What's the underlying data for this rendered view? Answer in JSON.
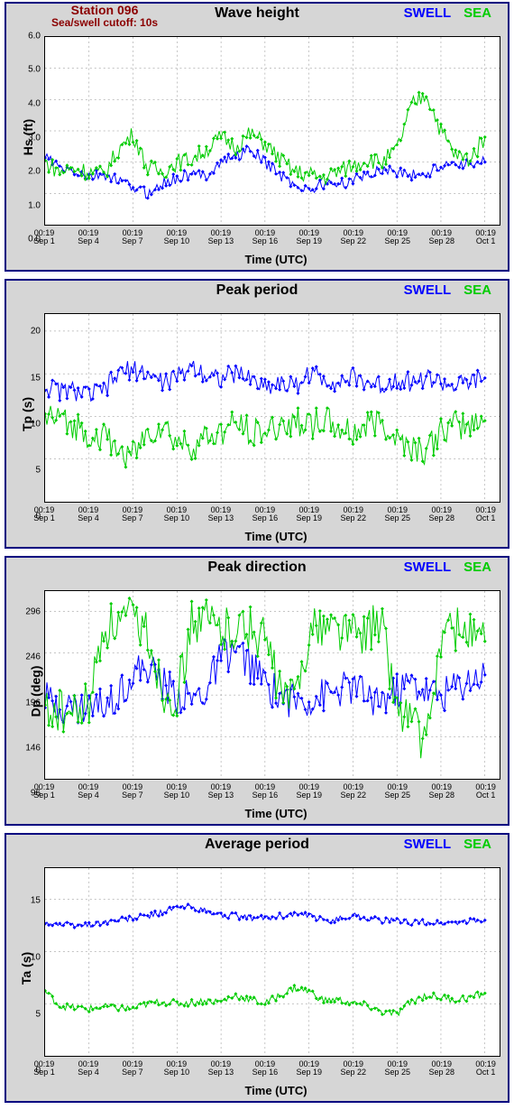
{
  "global": {
    "station_name": "Station 096",
    "cutoff_text": "Sea/swell cutoff: 10s",
    "xlabel": "Time (UTC)",
    "legend_swell": "SWELL",
    "legend_sea": "SEA",
    "xtick_labels": [
      "00:19\nSep 1",
      "00:19\nSep 4",
      "00:19\nSep 7",
      "00:19\nSep 10",
      "00:19\nSep 13",
      "00:19\nSep 16",
      "00:19\nSep 19",
      "00:19\nSep 22",
      "00:19\nSep 25",
      "00:19\nSep 28",
      "00:19\nOct 1"
    ],
    "xtick_positions": [
      0,
      3,
      6,
      9,
      12,
      15,
      18,
      21,
      24,
      27,
      30
    ],
    "x_domain": [
      0,
      31
    ],
    "colors": {
      "panel_bg": "#d6d6d6",
      "panel_border": "#000080",
      "station_text": "#8b0000",
      "plot_bg": "#ffffff",
      "grid": "#888888",
      "swell": "#0000ff",
      "sea": "#00cc00",
      "text": "#000000"
    },
    "marker_size": 2,
    "line_width": 1,
    "font_family": "Arial",
    "title_fontsize": 16,
    "label_fontsize": 14,
    "tick_fontsize": 10
  },
  "charts": [
    {
      "id": "wave-height",
      "title": "Wave height",
      "ylabel": "Hs (ft)",
      "show_station": true,
      "ylim": [
        0.0,
        6.0
      ],
      "ytick_positions": [
        0.0,
        1.0,
        2.0,
        3.0,
        4.0,
        5.0,
        6.0
      ],
      "ytick_labels": [
        "0.0",
        "1.0",
        "2.0",
        "3.0",
        "4.0",
        "5.0",
        "6.0"
      ],
      "series": {
        "swell": [
          2.2,
          1.8,
          1.7,
          1.5,
          1.6,
          1.4,
          1.2,
          1.0,
          1.3,
          1.5,
          1.6,
          1.6,
          2.0,
          2.2,
          2.4,
          2.0,
          1.6,
          1.3,
          1.1,
          1.3,
          1.3,
          1.4,
          1.6,
          1.8,
          1.7,
          1.6,
          1.6,
          1.9,
          2.0,
          1.9,
          2.0
        ],
        "sea": [
          2.0,
          1.7,
          1.8,
          1.7,
          1.6,
          2.4,
          2.9,
          1.8,
          1.7,
          2.0,
          2.1,
          2.4,
          2.8,
          2.5,
          2.9,
          2.6,
          2.1,
          1.7,
          1.6,
          1.5,
          1.7,
          1.9,
          2.1,
          2.0,
          2.4,
          3.8,
          4.2,
          3.0,
          2.2,
          2.1,
          2.8
        ]
      },
      "noise": {
        "swell": 0.18,
        "sea": 0.28
      }
    },
    {
      "id": "peak-period",
      "title": "Peak period",
      "ylabel": "Tp (s)",
      "show_station": false,
      "ylim": [
        0,
        22
      ],
      "ytick_positions": [
        0,
        5,
        10,
        15,
        20
      ],
      "ytick_labels": [
        "0",
        "5",
        "10",
        "15",
        "20"
      ],
      "series": {
        "swell": [
          13.5,
          13.0,
          13.0,
          12.5,
          13.0,
          15.0,
          15.5,
          15.0,
          14.0,
          14.5,
          16.0,
          15.0,
          14.5,
          15.0,
          14.5,
          13.5,
          14.0,
          13.5,
          15.0,
          14.5,
          14.0,
          14.5,
          14.0,
          13.5,
          14.5,
          14.0,
          14.5,
          14.0,
          13.5,
          14.0,
          14.5
        ],
        "sea": [
          10.0,
          9.5,
          9.0,
          8.0,
          7.5,
          6.0,
          5.5,
          8.0,
          9.0,
          7.0,
          6.5,
          7.5,
          8.0,
          9.0,
          8.5,
          8.0,
          9.0,
          9.5,
          9.0,
          9.5,
          8.5,
          8.0,
          9.0,
          9.5,
          7.5,
          6.5,
          6.0,
          8.0,
          9.0,
          9.0,
          9.5
        ]
      },
      "noise": {
        "swell": 1.2,
        "sea": 1.8
      }
    },
    {
      "id": "peak-direction",
      "title": "Peak direction",
      "ylabel": "Dp (deg)",
      "show_station": false,
      "ylim": [
        96,
        320
      ],
      "ytick_positions": [
        96,
        146,
        196,
        246,
        296
      ],
      "ytick_labels": [
        "96",
        "146",
        "196",
        "246",
        "296"
      ],
      "series": {
        "swell": [
          190,
          185,
          180,
          182,
          185,
          200,
          220,
          230,
          210,
          195,
          190,
          200,
          240,
          250,
          230,
          210,
          195,
          188,
          190,
          195,
          200,
          205,
          195,
          190,
          200,
          210,
          200,
          195,
          205,
          215,
          220
        ],
        "sea": [
          180,
          175,
          170,
          185,
          275,
          280,
          285,
          270,
          200,
          195,
          280,
          285,
          275,
          280,
          275,
          265,
          200,
          190,
          270,
          280,
          275,
          270,
          275,
          280,
          180,
          170,
          130,
          265,
          275,
          270,
          260
        ]
      },
      "noise": {
        "swell": 22,
        "sea": 28
      }
    },
    {
      "id": "average-period",
      "title": "Average period",
      "ylabel": "Ta (s)",
      "show_station": false,
      "ylim": [
        0,
        18
      ],
      "ytick_positions": [
        0,
        5,
        10,
        15
      ],
      "ytick_labels": [
        "0",
        "5",
        "10",
        "15"
      ],
      "series": {
        "swell": [
          12.8,
          12.6,
          12.5,
          12.6,
          12.8,
          13.0,
          13.2,
          13.4,
          13.8,
          14.2,
          14.3,
          13.8,
          13.5,
          13.4,
          13.2,
          13.2,
          13.4,
          13.6,
          13.4,
          13.0,
          13.1,
          13.5,
          13.2,
          13.0,
          12.9,
          12.8,
          12.8,
          12.7,
          12.8,
          12.9,
          13.0
        ],
        "sea": [
          6.2,
          4.8,
          4.6,
          4.5,
          4.7,
          4.6,
          4.5,
          5.0,
          5.2,
          5.0,
          5.1,
          5.3,
          5.2,
          5.8,
          5.4,
          5.0,
          5.8,
          6.5,
          6.2,
          5.3,
          5.4,
          5.0,
          4.8,
          4.2,
          4.0,
          5.2,
          5.8,
          5.6,
          5.4,
          5.6,
          6.0
        ]
      },
      "noise": {
        "swell": 0.3,
        "sea": 0.35
      }
    }
  ]
}
